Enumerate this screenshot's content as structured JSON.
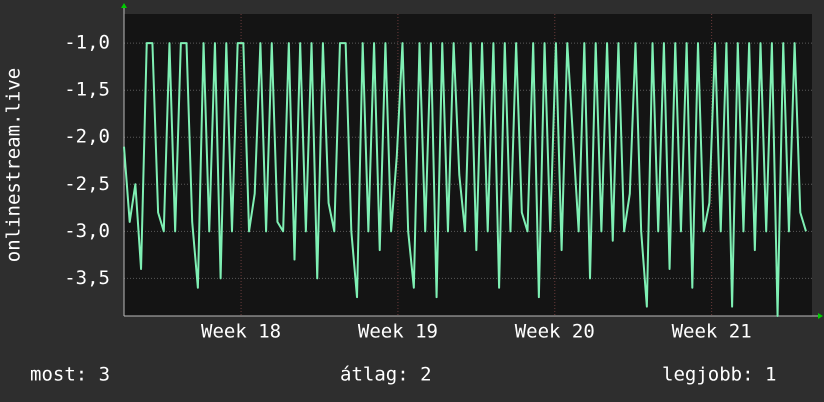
{
  "chart_data": {
    "type": "line",
    "y_label": "onlinestream.live",
    "values": [
      -2.1,
      -2.9,
      -2.5,
      -3.4,
      -1.0,
      -1.0,
      -2.8,
      -3.0,
      -1.0,
      -3.0,
      -1.0,
      -1.0,
      -2.9,
      -3.6,
      -1.0,
      -3.0,
      -1.0,
      -3.5,
      -1.0,
      -3.0,
      -1.0,
      -1.0,
      -3.0,
      -2.6,
      -1.0,
      -3.0,
      -1.0,
      -2.9,
      -3.0,
      -1.0,
      -3.3,
      -1.0,
      -3.0,
      -1.0,
      -3.5,
      -1.0,
      -2.7,
      -3.0,
      -1.0,
      -1.0,
      -3.0,
      -3.7,
      -1.0,
      -3.0,
      -1.0,
      -3.2,
      -1.0,
      -3.0,
      -2.2,
      -1.0,
      -3.0,
      -3.6,
      -1.0,
      -3.0,
      -1.0,
      -3.7,
      -1.0,
      -3.0,
      -1.0,
      -2.4,
      -3.0,
      -1.0,
      -3.2,
      -1.0,
      -3.0,
      -1.0,
      -3.6,
      -1.0,
      -3.0,
      -1.0,
      -2.8,
      -3.0,
      -1.0,
      -3.7,
      -1.0,
      -3.0,
      -1.0,
      -3.2,
      -1.0,
      -2.0,
      -3.0,
      -1.0,
      -3.5,
      -1.0,
      -3.0,
      -1.0,
      -3.1,
      -1.0,
      -3.0,
      -2.6,
      -1.0,
      -3.0,
      -3.8,
      -1.0,
      -3.0,
      -1.0,
      -3.4,
      -1.0,
      -3.0,
      -1.0,
      -3.6,
      -1.0,
      -3.0,
      -2.7,
      -1.0,
      -3.0,
      -1.0,
      -3.8,
      -1.0,
      -3.0,
      -1.0,
      -3.2,
      -1.0,
      -3.0,
      -1.0,
      -3.9,
      -1.0,
      -3.0,
      -1.0,
      -2.8,
      -3.0
    ],
    "color": "#7ff0b4",
    "xlim": [
      0,
      121.06
    ],
    "xticks": [
      {
        "value": 20.6,
        "label": "Week 18"
      },
      {
        "value": 48.2,
        "label": "Week 19"
      },
      {
        "value": 75.8,
        "label": "Week 20"
      },
      {
        "value": 103.4,
        "label": "Week 21"
      }
    ],
    "ylim": [
      -3.9,
      -0.69
    ],
    "yticks": [
      {
        "value": -1,
        "label": "-1,0"
      },
      {
        "value": -1.5,
        "label": "-1,5"
      },
      {
        "value": -2,
        "label": "-2,0"
      },
      {
        "value": -2.5,
        "label": "-2,5"
      },
      {
        "value": -3,
        "label": "-3,0"
      },
      {
        "value": -3.5,
        "label": "-3,5"
      }
    ],
    "grid": true,
    "legend": [
      "most: 3",
      "átlag: 2",
      "legjobb: 1"
    ]
  }
}
